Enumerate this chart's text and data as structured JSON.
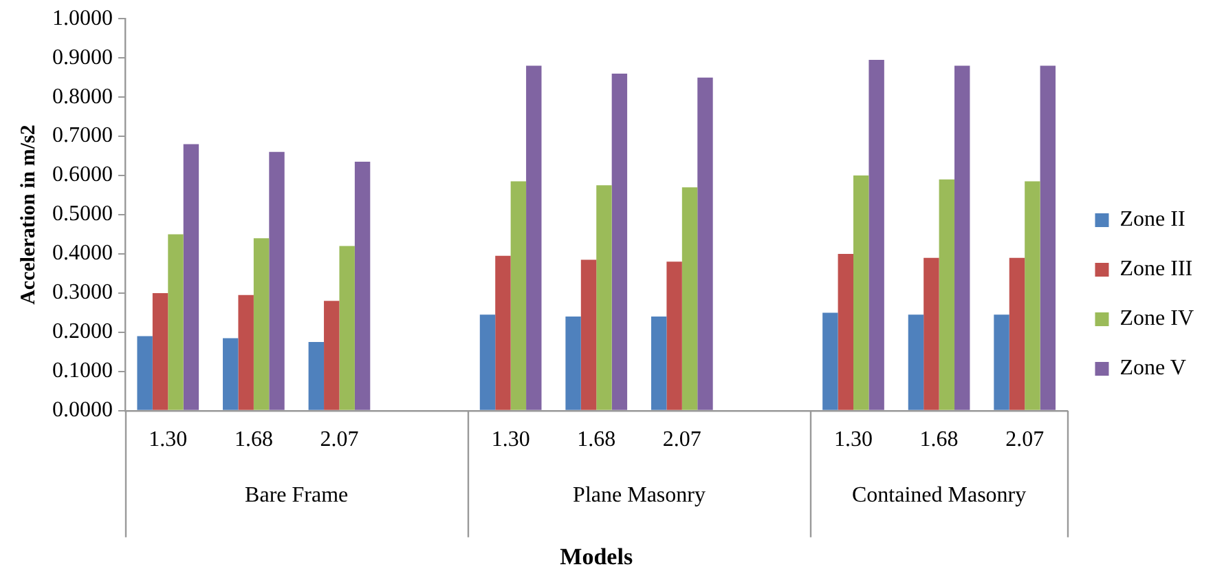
{
  "chart_data": {
    "type": "bar",
    "xlabel": "Models",
    "ylabel": "Acceleration in m/s2",
    "categories": [
      "1.30",
      "1.68",
      "2.07",
      null,
      "1.30",
      "1.68",
      "2.07",
      null,
      "1.30",
      "1.68",
      "2.07"
    ],
    "series": [
      {
        "name": "Zone II",
        "color": "#4f81bd",
        "values": [
          0.19,
          0.185,
          0.175,
          null,
          0.245,
          0.24,
          0.24,
          null,
          0.25,
          0.245,
          0.245
        ]
      },
      {
        "name": "Zone III",
        "color": "#c0504d",
        "values": [
          0.3,
          0.295,
          0.28,
          null,
          0.395,
          0.385,
          0.38,
          null,
          0.4,
          0.39,
          0.39
        ]
      },
      {
        "name": "Zone IV",
        "color": "#9bbb59",
        "values": [
          0.45,
          0.44,
          0.42,
          null,
          0.585,
          0.575,
          0.57,
          null,
          0.6,
          0.59,
          0.585
        ]
      },
      {
        "name": "Zone V",
        "color": "#8064a2",
        "values": [
          0.68,
          0.66,
          0.635,
          null,
          0.88,
          0.86,
          0.85,
          null,
          0.895,
          0.88,
          0.88
        ]
      }
    ],
    "ylim": [
      0,
      1
    ],
    "yticks": [
      {
        "value": 0,
        "label": "0.0000"
      },
      {
        "value": 0.1,
        "label": "0.1000"
      },
      {
        "value": 0.2,
        "label": "0.2000"
      },
      {
        "value": 0.3,
        "label": "0.3000"
      },
      {
        "value": 0.4,
        "label": "0.4000"
      },
      {
        "value": 0.5,
        "label": "0.5000"
      },
      {
        "value": 0.6,
        "label": "0.6000"
      },
      {
        "value": 0.7,
        "label": "0.7000"
      },
      {
        "value": 0.8,
        "label": "0.8000"
      },
      {
        "value": 0.9,
        "label": "0.9000"
      },
      {
        "value": 1,
        "label": "1.0000"
      }
    ],
    "annotations": [
      "Bare Frame",
      "Plane Masonry",
      "Contained Masonry"
    ],
    "grid": false,
    "legend": "right"
  }
}
